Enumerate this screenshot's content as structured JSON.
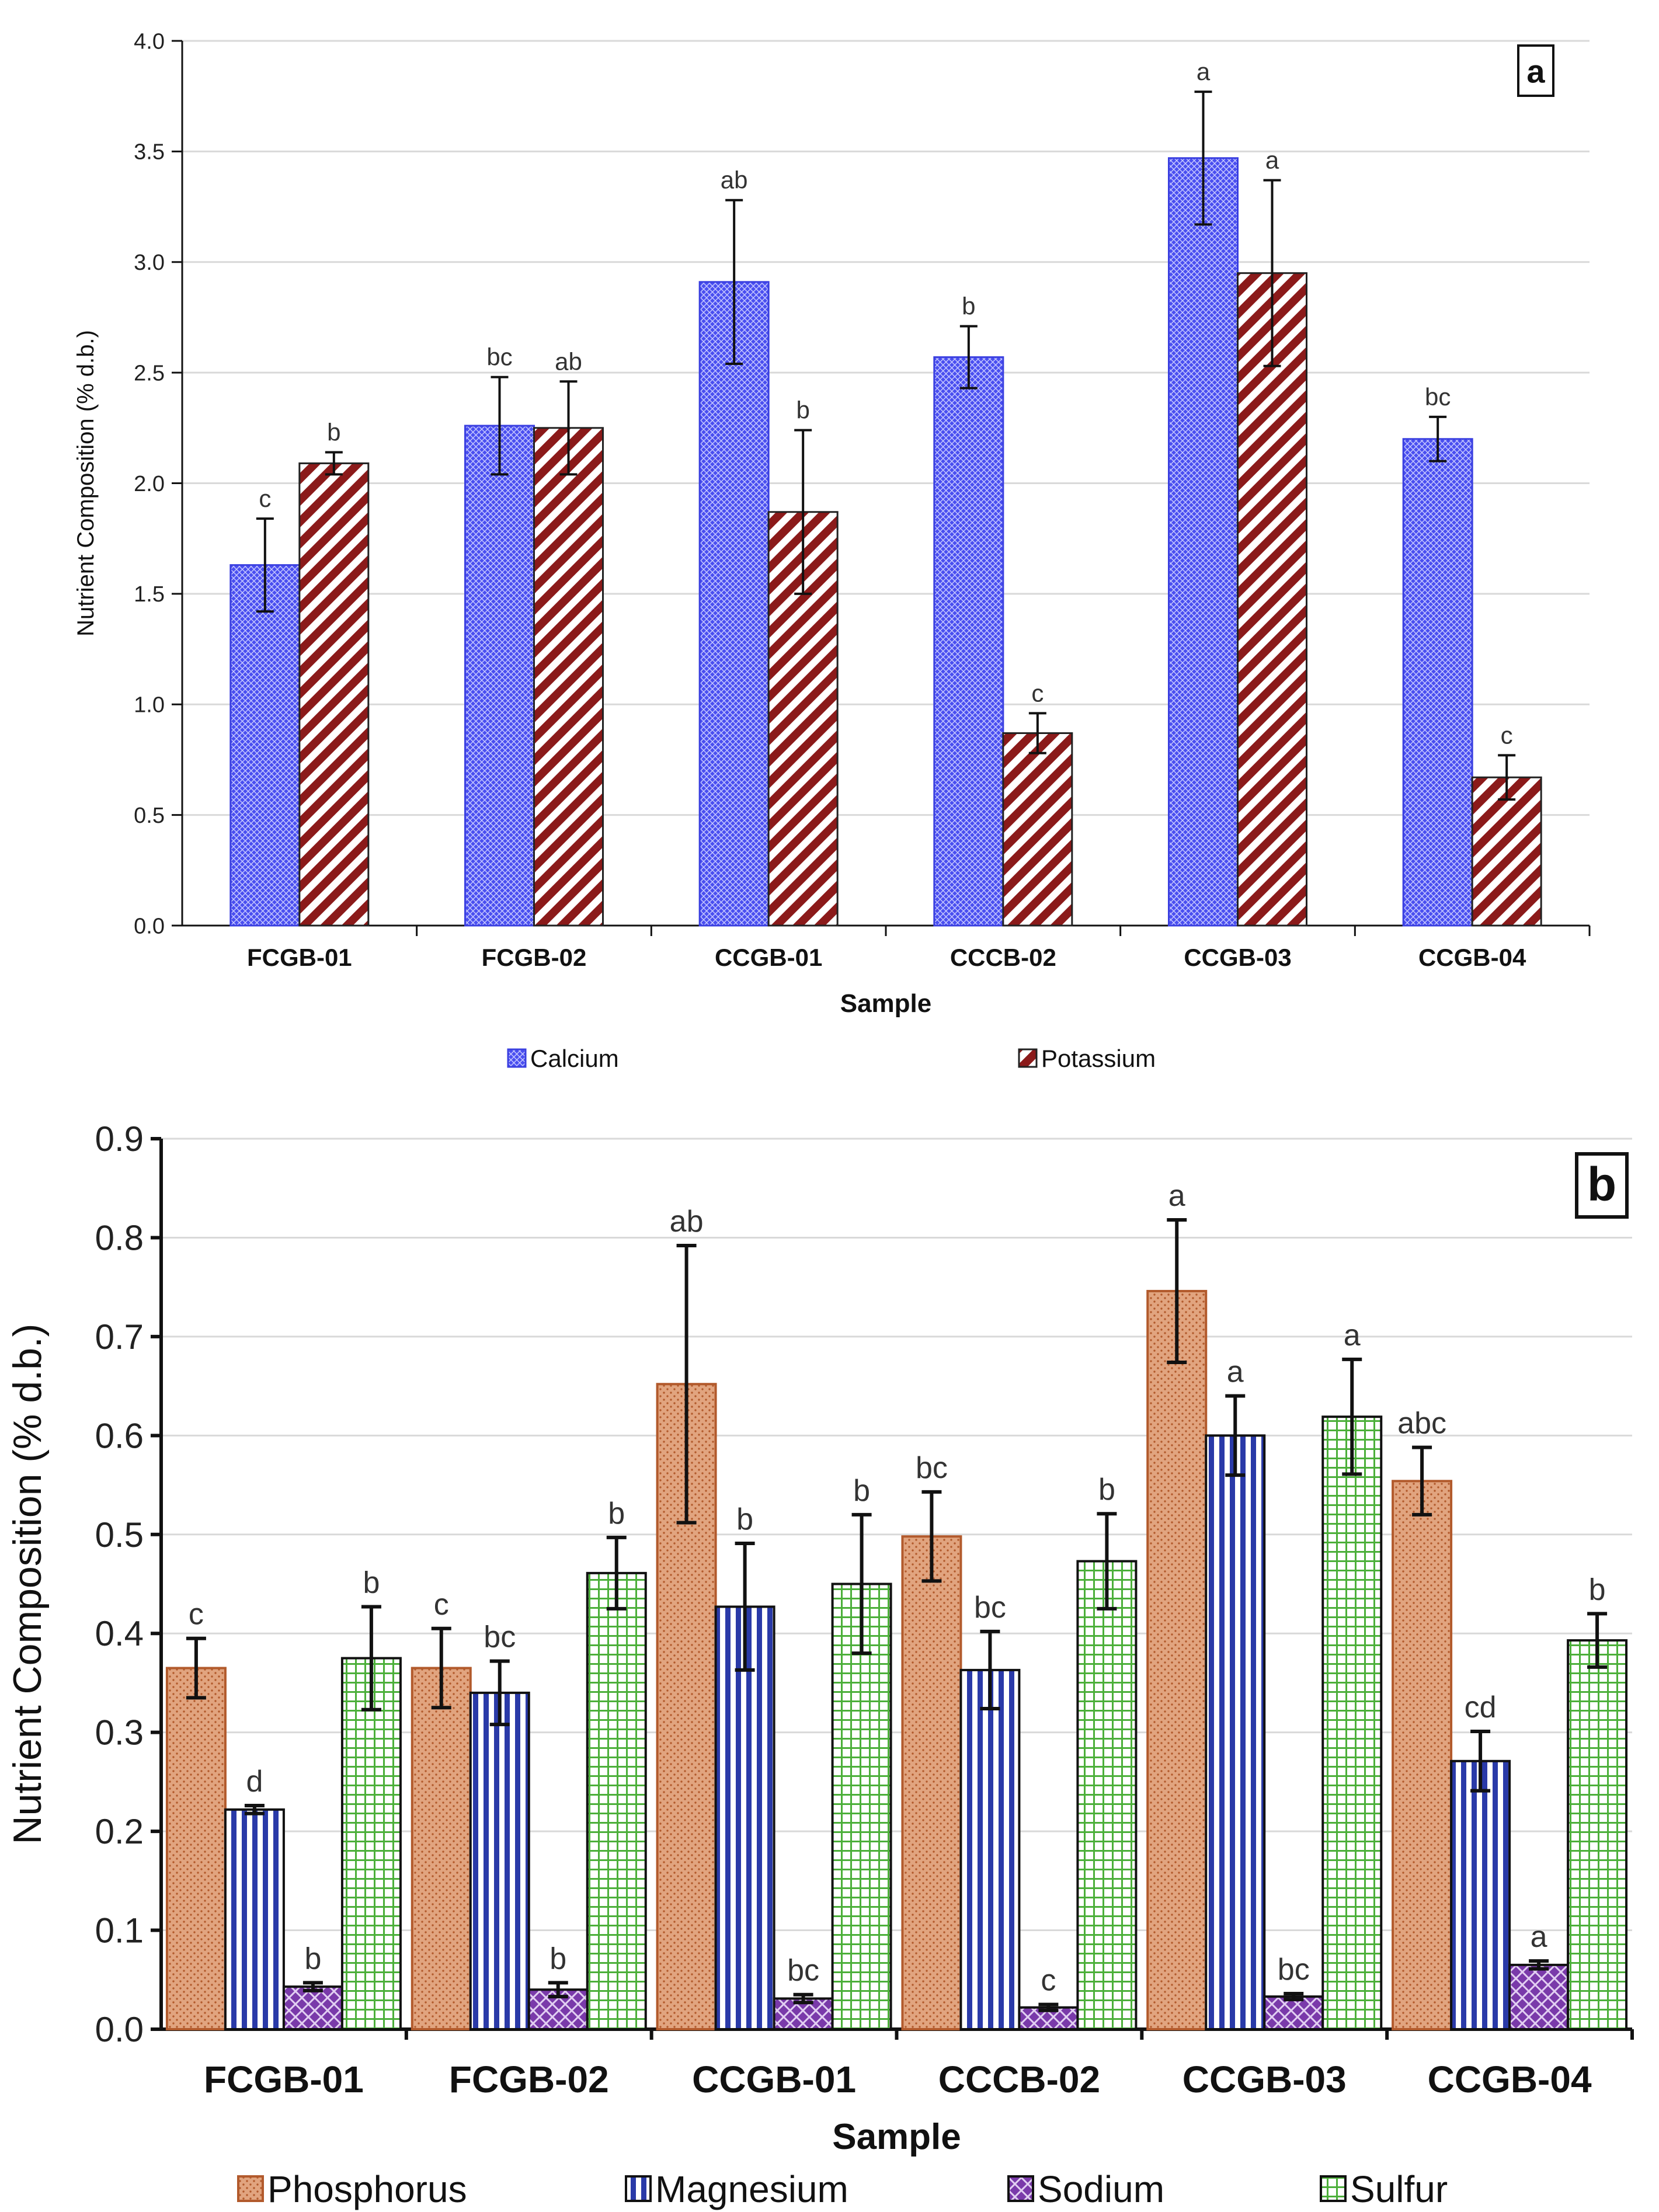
{
  "chart_data": [
    {
      "type": "bar",
      "panel_label": "a",
      "title": "",
      "xlabel": "Sample",
      "ylabel": "Nutrient Composition (% d.b.)",
      "ylim": [
        0,
        4.0
      ],
      "yticks": [
        "0.0",
        "0.5",
        "1.0",
        "1.5",
        "2.0",
        "2.5",
        "3.0",
        "3.5",
        "4.0"
      ],
      "grid": true,
      "legend_position": "bottom",
      "categories": [
        "FCGB-01",
        "FCGB-02",
        "CCGB-01",
        "CCCB-02",
        "CCGB-03",
        "CCGB-04"
      ],
      "series": [
        {
          "name": "Calcium",
          "color": "#4a4ff0",
          "values": [
            1.63,
            2.26,
            2.91,
            2.57,
            3.47,
            2.2
          ],
          "errors": [
            0.21,
            0.22,
            0.37,
            0.14,
            0.3,
            0.1
          ],
          "letters": [
            "c",
            "bc",
            "ab",
            "b",
            "a",
            "bc"
          ]
        },
        {
          "name": "Potassium",
          "color": "#8b1a1a",
          "values": [
            2.09,
            2.25,
            1.87,
            0.87,
            2.95,
            0.67
          ],
          "errors": [
            0.05,
            0.21,
            0.37,
            0.09,
            0.42,
            0.1
          ],
          "letters": [
            "b",
            "ab",
            "b",
            "c",
            "a",
            "c"
          ]
        }
      ]
    },
    {
      "type": "bar",
      "panel_label": "b",
      "title": "",
      "xlabel": "Sample",
      "ylabel": "Nutrient Composition (% d.b.)",
      "ylim": [
        0,
        0.9
      ],
      "yticks": [
        "0.0",
        "0.1",
        "0.2",
        "0.3",
        "0.4",
        "0.5",
        "0.6",
        "0.7",
        "0.8",
        "0.9"
      ],
      "grid": true,
      "legend_position": "bottom",
      "categories": [
        "FCGB-01",
        "FCGB-02",
        "CCGB-01",
        "CCCB-02",
        "CCGB-03",
        "CCGB-04"
      ],
      "series": [
        {
          "name": "Phosphorus",
          "color": "#c8744a",
          "values": [
            0.365,
            0.365,
            0.652,
            0.498,
            0.746,
            0.554
          ],
          "errors": [
            0.03,
            0.04,
            0.14,
            0.045,
            0.072,
            0.034
          ],
          "letters": [
            "c",
            "c",
            "ab",
            "bc",
            "a",
            "abc"
          ]
        },
        {
          "name": "Magnesium",
          "color": "#2a3aa8",
          "values": [
            0.222,
            0.34,
            0.427,
            0.363,
            0.6,
            0.271
          ],
          "errors": [
            0.004,
            0.032,
            0.064,
            0.039,
            0.04,
            0.03
          ],
          "letters": [
            "d",
            "bc",
            "b",
            "bc",
            "a",
            "cd"
          ]
        },
        {
          "name": "Sodium",
          "color": "#6a2a9a",
          "values": [
            0.043,
            0.04,
            0.031,
            0.022,
            0.033,
            0.065
          ],
          "errors": [
            0.004,
            0.007,
            0.004,
            0.003,
            0.003,
            0.004
          ],
          "letters": [
            "b",
            "b",
            "bc",
            "c",
            "bc",
            "a"
          ]
        },
        {
          "name": "Sulfur",
          "color": "#4caf3a",
          "values": [
            0.375,
            0.461,
            0.45,
            0.473,
            0.619,
            0.393
          ],
          "errors": [
            0.052,
            0.036,
            0.07,
            0.048,
            0.058,
            0.027
          ],
          "letters": [
            "b",
            "b",
            "b",
            "b",
            "a",
            "b"
          ]
        }
      ]
    }
  ]
}
